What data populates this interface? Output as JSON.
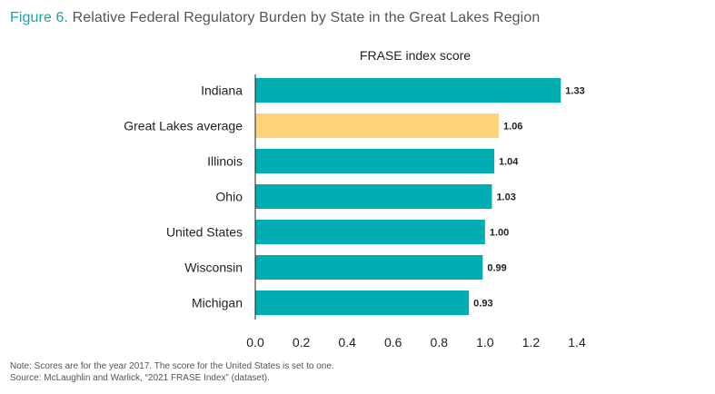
{
  "figure": {
    "number": "Figure 6.",
    "title": "Relative Federal Regulatory Burden by State in the Great Lakes Region"
  },
  "colors": {
    "bar": "#00adb2",
    "highlight": "#ffd37a",
    "title_number": "#1aa3ad"
  },
  "chart_data": {
    "type": "bar",
    "orientation": "horizontal",
    "title": "FRASE index score",
    "categories": [
      "Indiana",
      "Great Lakes average",
      "Illinois",
      "Ohio",
      "United States",
      "Wisconsin",
      "Michigan"
    ],
    "values": [
      1.33,
      1.06,
      1.04,
      1.03,
      1.0,
      0.99,
      0.93
    ],
    "value_labels": [
      "1.33",
      "1.06",
      "1.04",
      "1.03",
      "1.00",
      "0.99",
      "0.93"
    ],
    "highlight_category": "Great Lakes average",
    "xlim": [
      0,
      1.4
    ],
    "xticks": [
      "0.0",
      "0.2",
      "0.4",
      "0.6",
      "0.8",
      "1.0",
      "1.2",
      "1.4"
    ],
    "grid": false,
    "legend": "none"
  },
  "notes": {
    "note": "Note: Scores are for the year 2017. The score for the United States is set to one.",
    "source": "Source: McLaughlin and Warlick, “2021 FRASE Index” (dataset)."
  }
}
